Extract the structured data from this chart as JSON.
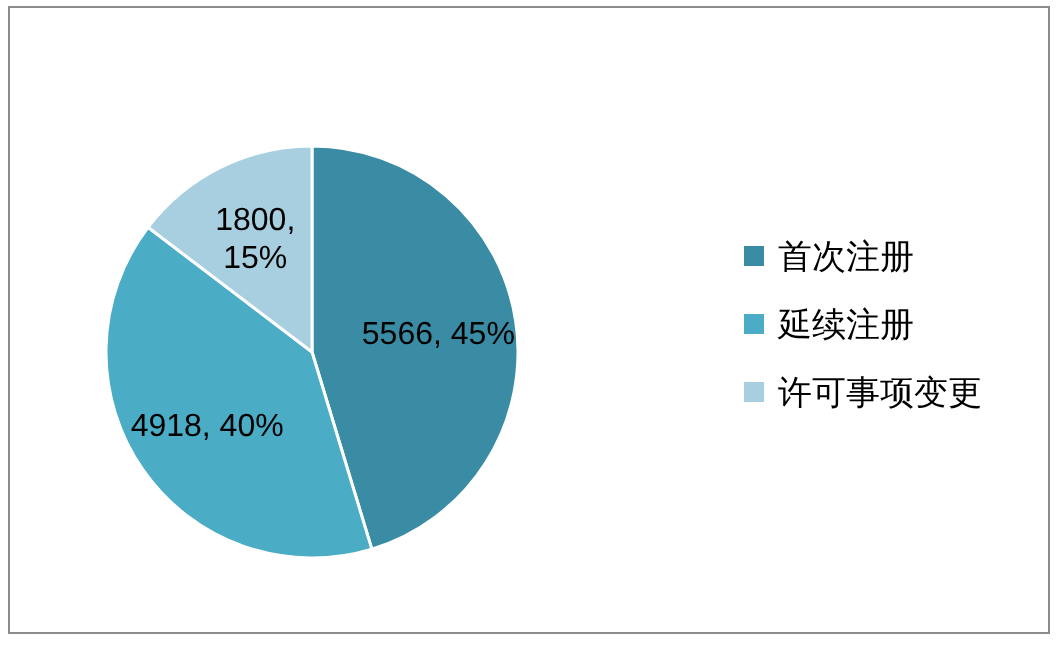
{
  "chart_data": {
    "type": "pie",
    "categories": [
      "首次注册",
      "延续注册",
      "许可事项变更"
    ],
    "values": [
      5566,
      4918,
      1800
    ],
    "colors": [
      "#3a8ca4",
      "#4bacc6",
      "#a8cfe0"
    ],
    "value_labels": [
      "5566, 45%",
      "4918, 40%",
      "1800, 15%"
    ],
    "legend": "right"
  }
}
